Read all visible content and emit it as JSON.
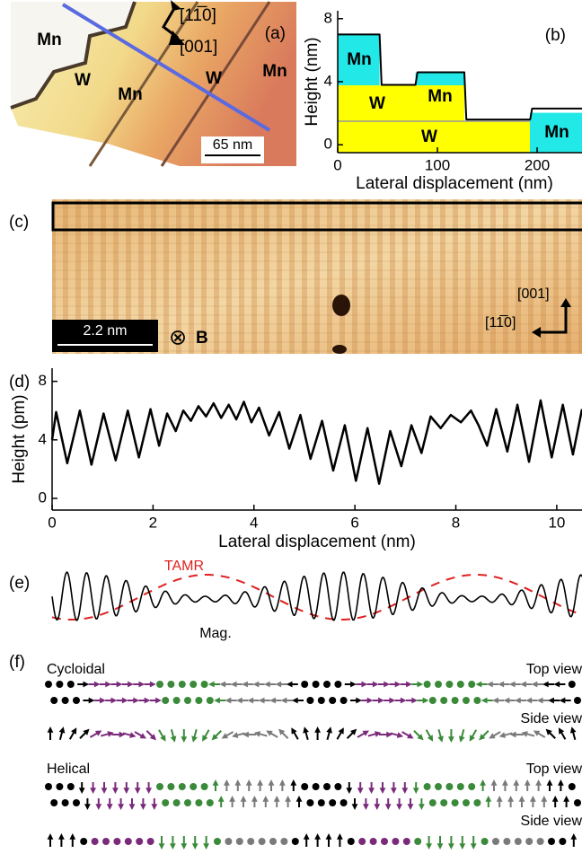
{
  "panel_a": {
    "label": "(a)",
    "regions": [
      "Mn",
      "W",
      "Mn",
      "W",
      "Mn"
    ],
    "directions": [
      "[11̅0]",
      "[001]"
    ],
    "scale_bar": "65 nm"
  },
  "chart_data": [
    {
      "type": "line",
      "label": "(b)",
      "ylabel": "Height (nm)",
      "xlabel": "Lateral displacement (nm)",
      "xlim": [
        0,
        245
      ],
      "ylim": [
        -0.5,
        8.5
      ],
      "xticks": [
        0,
        100,
        200
      ],
      "yticks": [
        0,
        4,
        8
      ],
      "annotations": [
        "Mn",
        "W",
        "Mn",
        "W",
        "Mn"
      ],
      "x": [
        0,
        42,
        44,
        78,
        80,
        127,
        129,
        193,
        195,
        245
      ],
      "values": [
        7.0,
        7.0,
        3.8,
        3.8,
        4.6,
        4.6,
        1.6,
        1.6,
        2.3,
        2.3
      ],
      "color": "#000000"
    },
    {
      "type": "line",
      "label": "(d)",
      "ylabel": "Height (pm)",
      "xlabel": "Lateral displacement (nm)",
      "xlim": [
        0,
        10.5
      ],
      "ylim": [
        -0.8,
        8.9
      ],
      "xticks": [
        0,
        2,
        4,
        6,
        8,
        10
      ],
      "yticks": [
        0,
        4,
        8
      ],
      "x": [
        0,
        0.08,
        0.3,
        0.55,
        0.78,
        1.02,
        1.26,
        1.5,
        1.72,
        1.95,
        2.12,
        2.28,
        2.45,
        2.6,
        2.75,
        2.9,
        3.05,
        3.2,
        3.35,
        3.5,
        3.65,
        3.8,
        3.95,
        4.1,
        4.3,
        4.5,
        4.7,
        4.92,
        5.12,
        5.35,
        5.57,
        5.8,
        6.02,
        6.25,
        6.48,
        6.7,
        6.92,
        7.12,
        7.32,
        7.5,
        7.7,
        7.9,
        8.1,
        8.3,
        8.45,
        8.62,
        8.8,
        9.02,
        9.22,
        9.45,
        9.68,
        9.9,
        10.12,
        10.32,
        10.5
      ],
      "values": [
        4.0,
        5.9,
        2.4,
        6.0,
        2.3,
        5.8,
        2.6,
        6.0,
        2.8,
        6.1,
        3.6,
        5.8,
        4.6,
        6.0,
        5.3,
        6.3,
        5.6,
        6.5,
        5.5,
        6.4,
        5.4,
        6.6,
        5.2,
        6.2,
        4.3,
        5.9,
        3.4,
        5.7,
        2.7,
        5.3,
        1.9,
        5.0,
        1.2,
        4.8,
        1.0,
        4.6,
        2.2,
        5.0,
        3.1,
        5.6,
        4.8,
        5.7,
        5.2,
        6.0,
        5.0,
        3.6,
        6.1,
        3.2,
        6.4,
        2.5,
        6.7,
        2.8,
        6.4,
        3.0,
        6.1
      ],
      "color": "#000000"
    }
  ],
  "panel_c": {
    "label": "(c)",
    "scale_bar": "2.2 nm",
    "field_symbol": "⊗",
    "field": "B",
    "directions": [
      "[001]",
      "[11̅0]"
    ]
  },
  "panel_e": {
    "label": "(e)",
    "curves": [
      "TAMR",
      "Mag."
    ]
  },
  "panel_f": {
    "label": "(f)",
    "rows": [
      {
        "name": "Cycloidal",
        "views": [
          "Top view",
          "Side view"
        ]
      },
      {
        "name": "Helical",
        "views": [
          "Top view",
          "Side view"
        ]
      }
    ]
  }
}
